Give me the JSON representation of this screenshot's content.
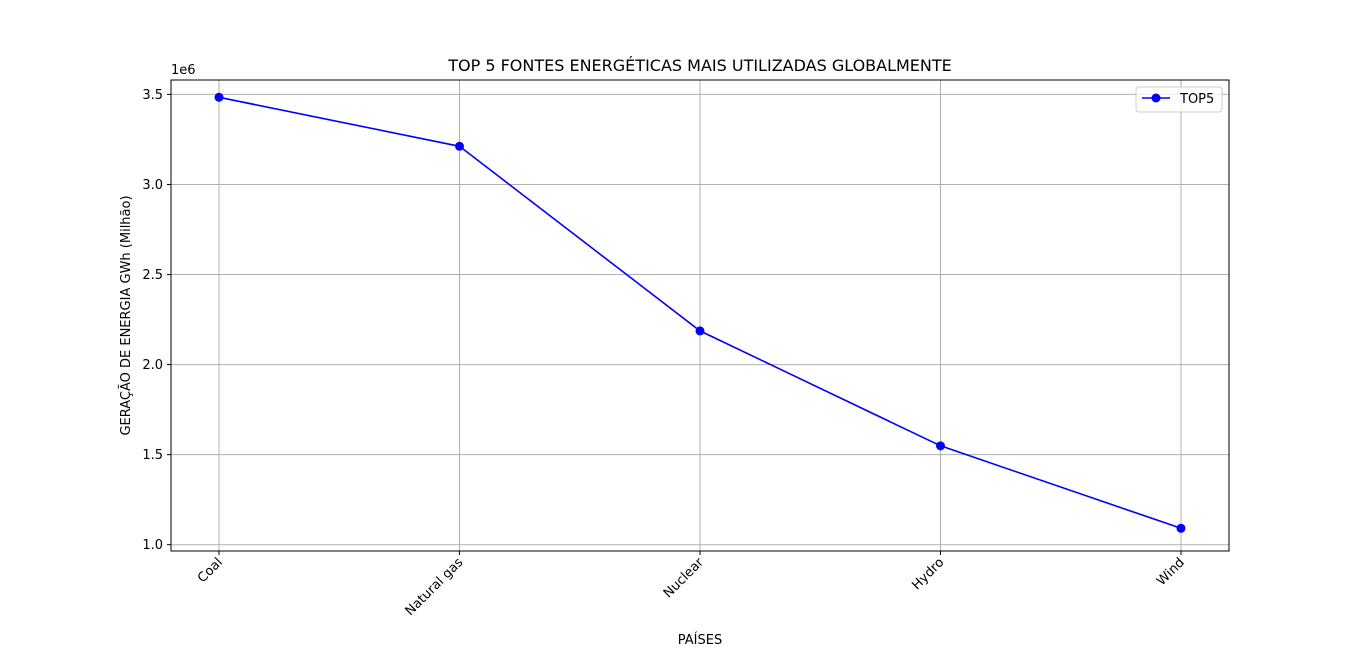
{
  "chart_data": {
    "type": "line",
    "title": "TOP 5 FONTES ENERGÉTICAS MAIS UTILIZADAS GLOBALMENTE",
    "xlabel": "PAÍSES",
    "ylabel": "GERAÇÃO DE ENERGIA GWh (Milhão)",
    "y_offset_label": "1e6",
    "categories": [
      "Coal",
      "Natural gas",
      "Nuclear",
      "Hydro",
      "Wind"
    ],
    "series": [
      {
        "name": "TOP5",
        "values": [
          3484000,
          3212000,
          2187000,
          1549000,
          1091000
        ],
        "color": "#0000ff"
      }
    ],
    "ylim": [
      965000,
      3580000
    ],
    "yticks": [
      1000000,
      1500000,
      2000000,
      2500000,
      3000000,
      3500000
    ],
    "ytick_labels": [
      "1.0",
      "1.5",
      "2.0",
      "2.5",
      "3.0",
      "3.5"
    ],
    "grid": true,
    "legend_position": "top-right"
  }
}
